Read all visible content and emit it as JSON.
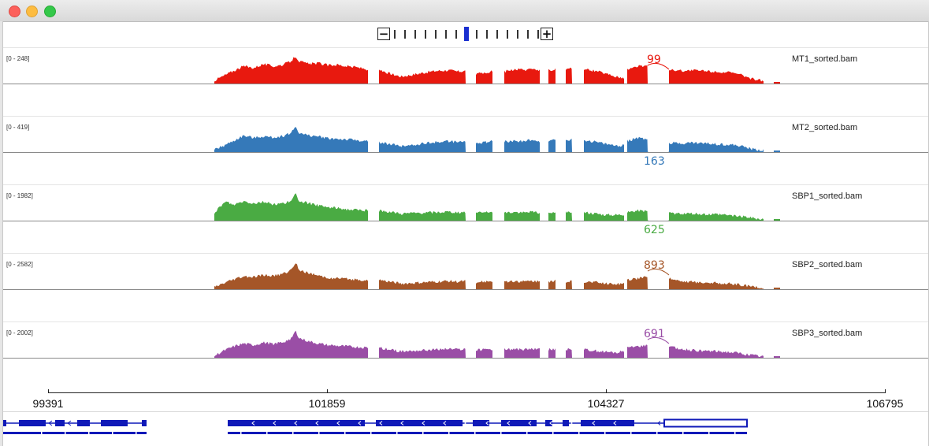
{
  "window": {
    "controls": [
      "close",
      "minimize",
      "zoom"
    ]
  },
  "zoom": {
    "minus_label": "−",
    "plus_label": "+",
    "levels": 15,
    "current_level": 8
  },
  "tracks": [
    {
      "name": "MT1_sorted.bam",
      "range": "[0 - 248]",
      "color": "#e8190f",
      "junction_label": "99",
      "junction_position": "above",
      "profile": [
        [
          268,
          0.1
        ],
        [
          280,
          0.25
        ],
        [
          292,
          0.4
        ],
        [
          305,
          0.55
        ],
        [
          318,
          0.5
        ],
        [
          330,
          0.62
        ],
        [
          343,
          0.55
        ],
        [
          356,
          0.6
        ],
        [
          366,
          0.72
        ],
        [
          371,
          0.88
        ],
        [
          376,
          0.7
        ],
        [
          388,
          0.62
        ],
        [
          400,
          0.65
        ],
        [
          412,
          0.58
        ],
        [
          424,
          0.6
        ],
        [
          436,
          0.55
        ],
        [
          448,
          0.52
        ],
        [
          463,
          0.45
        ],
        [
          477,
          0.45
        ],
        [
          490,
          0.32
        ],
        [
          505,
          0.22
        ],
        [
          520,
          0.28
        ],
        [
          535,
          0.35
        ],
        [
          550,
          0.4
        ],
        [
          565,
          0.42
        ],
        [
          577,
          0.38
        ],
        [
          587,
          0.4
        ],
        [
          600,
          0.3
        ],
        [
          612,
          0.35
        ],
        [
          621,
          0.38
        ],
        [
          636,
          0.38
        ],
        [
          648,
          0.45
        ],
        [
          660,
          0.42
        ],
        [
          672,
          0.48
        ],
        [
          681,
          0.42
        ],
        [
          692,
          0.42
        ],
        [
          701,
          0.45
        ],
        [
          714,
          0.45
        ],
        [
          722,
          0.48
        ],
        [
          737,
          0.45
        ],
        [
          752,
          0.4
        ],
        [
          766,
          0.3
        ],
        [
          780,
          0.2
        ],
        [
          788,
          0.18
        ],
        [
          792,
          0.45
        ],
        [
          805,
          0.55
        ],
        [
          818,
          0.58
        ],
        [
          845,
          0.45
        ],
        [
          860,
          0.4
        ],
        [
          875,
          0.42
        ],
        [
          890,
          0.4
        ],
        [
          905,
          0.38
        ],
        [
          920,
          0.35
        ],
        [
          935,
          0.28
        ],
        [
          950,
          0.15
        ],
        [
          965,
          0.08
        ]
      ]
    },
    {
      "name": "MT2_sorted.bam",
      "range": "[0 - 419]",
      "color": "#3579b9",
      "junction_label": "163",
      "junction_position": "below",
      "profile": [
        [
          268,
          0.08
        ],
        [
          280,
          0.2
        ],
        [
          292,
          0.35
        ],
        [
          305,
          0.52
        ],
        [
          318,
          0.45
        ],
        [
          330,
          0.5
        ],
        [
          343,
          0.46
        ],
        [
          356,
          0.52
        ],
        [
          366,
          0.62
        ],
        [
          371,
          0.82
        ],
        [
          376,
          0.6
        ],
        [
          388,
          0.52
        ],
        [
          400,
          0.5
        ],
        [
          412,
          0.44
        ],
        [
          424,
          0.42
        ],
        [
          436,
          0.4
        ],
        [
          448,
          0.38
        ],
        [
          463,
          0.34
        ],
        [
          477,
          0.32
        ],
        [
          490,
          0.25
        ],
        [
          505,
          0.2
        ],
        [
          520,
          0.22
        ],
        [
          535,
          0.28
        ],
        [
          550,
          0.32
        ],
        [
          565,
          0.34
        ],
        [
          577,
          0.32
        ],
        [
          587,
          0.34
        ],
        [
          600,
          0.28
        ],
        [
          612,
          0.32
        ],
        [
          621,
          0.36
        ],
        [
          636,
          0.34
        ],
        [
          648,
          0.36
        ],
        [
          660,
          0.34
        ],
        [
          672,
          0.38
        ],
        [
          681,
          0.34
        ],
        [
          692,
          0.36
        ],
        [
          701,
          0.38
        ],
        [
          714,
          0.38
        ],
        [
          722,
          0.4
        ],
        [
          737,
          0.38
        ],
        [
          752,
          0.32
        ],
        [
          766,
          0.25
        ],
        [
          780,
          0.2
        ],
        [
          788,
          0.22
        ],
        [
          792,
          0.35
        ],
        [
          805,
          0.45
        ],
        [
          818,
          0.4
        ],
        [
          845,
          0.3
        ],
        [
          860,
          0.28
        ],
        [
          875,
          0.3
        ],
        [
          890,
          0.28
        ],
        [
          905,
          0.26
        ],
        [
          920,
          0.24
        ],
        [
          935,
          0.2
        ],
        [
          950,
          0.1
        ],
        [
          965,
          0.05
        ]
      ]
    },
    {
      "name": "SBP1_sorted.bam",
      "range": "[0 - 1982]",
      "color": "#4aab43",
      "junction_label": "625",
      "junction_position": "below",
      "profile": [
        [
          268,
          0.2
        ],
        [
          275,
          0.45
        ],
        [
          283,
          0.6
        ],
        [
          292,
          0.5
        ],
        [
          305,
          0.62
        ],
        [
          318,
          0.55
        ],
        [
          330,
          0.6
        ],
        [
          343,
          0.52
        ],
        [
          356,
          0.55
        ],
        [
          366,
          0.62
        ],
        [
          371,
          0.85
        ],
        [
          376,
          0.62
        ],
        [
          388,
          0.55
        ],
        [
          400,
          0.48
        ],
        [
          412,
          0.42
        ],
        [
          424,
          0.4
        ],
        [
          436,
          0.36
        ],
        [
          448,
          0.34
        ],
        [
          463,
          0.32
        ],
        [
          477,
          0.32
        ],
        [
          490,
          0.28
        ],
        [
          505,
          0.22
        ],
        [
          520,
          0.24
        ],
        [
          535,
          0.25
        ],
        [
          550,
          0.26
        ],
        [
          565,
          0.28
        ],
        [
          577,
          0.26
        ],
        [
          587,
          0.28
        ],
        [
          600,
          0.24
        ],
        [
          612,
          0.26
        ],
        [
          621,
          0.28
        ],
        [
          636,
          0.26
        ],
        [
          648,
          0.28
        ],
        [
          660,
          0.26
        ],
        [
          672,
          0.28
        ],
        [
          681,
          0.26
        ],
        [
          692,
          0.26
        ],
        [
          701,
          0.28
        ],
        [
          714,
          0.26
        ],
        [
          722,
          0.28
        ],
        [
          737,
          0.26
        ],
        [
          752,
          0.22
        ],
        [
          766,
          0.18
        ],
        [
          780,
          0.18
        ],
        [
          788,
          0.2
        ],
        [
          792,
          0.26
        ],
        [
          805,
          0.32
        ],
        [
          818,
          0.3
        ],
        [
          845,
          0.24
        ],
        [
          860,
          0.22
        ],
        [
          875,
          0.22
        ],
        [
          890,
          0.2
        ],
        [
          905,
          0.2
        ],
        [
          920,
          0.18
        ],
        [
          935,
          0.14
        ],
        [
          950,
          0.08
        ],
        [
          965,
          0.04
        ]
      ]
    },
    {
      "name": "SBP2_sorted.bam",
      "range": "[0 - 2582]",
      "color": "#a55628",
      "junction_label": "893",
      "junction_position": "above",
      "profile": [
        [
          268,
          0.06
        ],
        [
          280,
          0.18
        ],
        [
          292,
          0.3
        ],
        [
          305,
          0.4
        ],
        [
          318,
          0.38
        ],
        [
          330,
          0.45
        ],
        [
          343,
          0.42
        ],
        [
          356,
          0.5
        ],
        [
          366,
          0.62
        ],
        [
          371,
          0.85
        ],
        [
          376,
          0.62
        ],
        [
          388,
          0.5
        ],
        [
          400,
          0.42
        ],
        [
          412,
          0.36
        ],
        [
          424,
          0.34
        ],
        [
          436,
          0.32
        ],
        [
          448,
          0.3
        ],
        [
          463,
          0.28
        ],
        [
          477,
          0.3
        ],
        [
          490,
          0.24
        ],
        [
          505,
          0.18
        ],
        [
          520,
          0.2
        ],
        [
          535,
          0.22
        ],
        [
          550,
          0.24
        ],
        [
          565,
          0.26
        ],
        [
          577,
          0.24
        ],
        [
          587,
          0.26
        ],
        [
          600,
          0.22
        ],
        [
          612,
          0.24
        ],
        [
          621,
          0.26
        ],
        [
          636,
          0.24
        ],
        [
          648,
          0.26
        ],
        [
          660,
          0.24
        ],
        [
          672,
          0.26
        ],
        [
          681,
          0.24
        ],
        [
          692,
          0.24
        ],
        [
          701,
          0.26
        ],
        [
          714,
          0.24
        ],
        [
          722,
          0.26
        ],
        [
          737,
          0.24
        ],
        [
          752,
          0.22
        ],
        [
          766,
          0.18
        ],
        [
          780,
          0.16
        ],
        [
          788,
          0.2
        ],
        [
          792,
          0.3
        ],
        [
          805,
          0.34
        ],
        [
          818,
          0.38
        ],
        [
          845,
          0.36
        ],
        [
          860,
          0.26
        ],
        [
          875,
          0.22
        ],
        [
          890,
          0.22
        ],
        [
          905,
          0.2
        ],
        [
          920,
          0.18
        ],
        [
          935,
          0.14
        ],
        [
          950,
          0.08
        ],
        [
          965,
          0.03
        ]
      ]
    },
    {
      "name": "SBP3_sorted.bam",
      "range": "[0 - 2002]",
      "color": "#9a4ea6",
      "junction_label": "691",
      "junction_position": "above",
      "profile": [
        [
          268,
          0.06
        ],
        [
          280,
          0.22
        ],
        [
          292,
          0.35
        ],
        [
          305,
          0.45
        ],
        [
          318,
          0.4
        ],
        [
          330,
          0.48
        ],
        [
          343,
          0.44
        ],
        [
          356,
          0.5
        ],
        [
          366,
          0.62
        ],
        [
          371,
          0.85
        ],
        [
          376,
          0.62
        ],
        [
          388,
          0.52
        ],
        [
          400,
          0.45
        ],
        [
          412,
          0.4
        ],
        [
          424,
          0.38
        ],
        [
          436,
          0.36
        ],
        [
          448,
          0.34
        ],
        [
          463,
          0.32
        ],
        [
          477,
          0.32
        ],
        [
          490,
          0.26
        ],
        [
          505,
          0.2
        ],
        [
          520,
          0.22
        ],
        [
          535,
          0.24
        ],
        [
          550,
          0.26
        ],
        [
          565,
          0.28
        ],
        [
          577,
          0.26
        ],
        [
          587,
          0.28
        ],
        [
          600,
          0.24
        ],
        [
          612,
          0.26
        ],
        [
          621,
          0.28
        ],
        [
          636,
          0.26
        ],
        [
          648,
          0.28
        ],
        [
          660,
          0.26
        ],
        [
          672,
          0.28
        ],
        [
          681,
          0.26
        ],
        [
          692,
          0.26
        ],
        [
          701,
          0.28
        ],
        [
          714,
          0.26
        ],
        [
          722,
          0.28
        ],
        [
          737,
          0.26
        ],
        [
          752,
          0.22
        ],
        [
          766,
          0.18
        ],
        [
          780,
          0.16
        ],
        [
          788,
          0.22
        ],
        [
          792,
          0.32
        ],
        [
          805,
          0.36
        ],
        [
          818,
          0.4
        ],
        [
          845,
          0.36
        ],
        [
          860,
          0.28
        ],
        [
          875,
          0.24
        ],
        [
          890,
          0.22
        ],
        [
          905,
          0.2
        ],
        [
          920,
          0.18
        ],
        [
          935,
          0.14
        ],
        [
          950,
          0.08
        ],
        [
          965,
          0.03
        ]
      ]
    }
  ],
  "axis": {
    "ticks": [
      {
        "label": "99391",
        "position": 99391
      },
      {
        "label": "101859",
        "position": 101859
      },
      {
        "label": "104327",
        "position": 104327
      },
      {
        "label": "106795",
        "position": 106795
      }
    ]
  },
  "gene_track": {
    "color": "#0f19b8",
    "highlight_color": "#ffffff"
  }
}
